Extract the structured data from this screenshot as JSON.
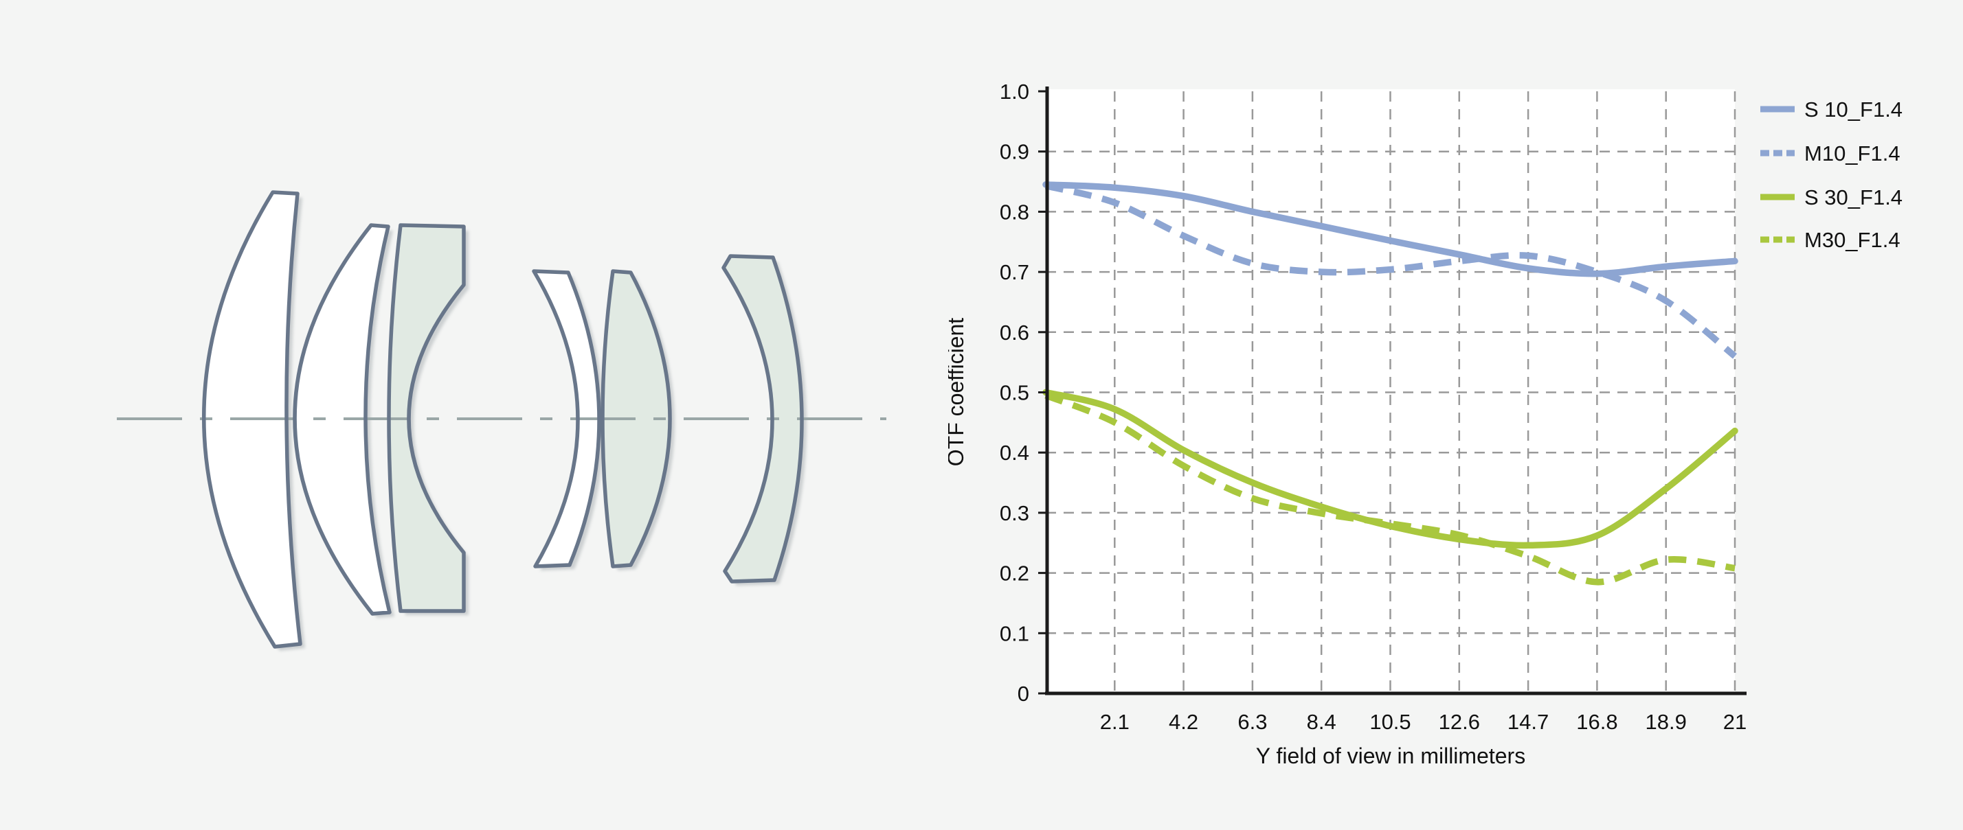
{
  "figure": {
    "description": "Lens cross-section diagram with OTF/MTF performance chart"
  },
  "lens_diagram": {
    "optical_axis": "horizontal dash-dot optical axis",
    "elements": [
      {
        "name": "element-1",
        "shape": "large meniscus, convex left",
        "tinted": false
      },
      {
        "name": "element-2",
        "shape": "meniscus, convex left",
        "tinted": false
      },
      {
        "name": "element-3",
        "shape": "block with deep concave right surface",
        "tinted": true
      },
      {
        "name": "element-4",
        "shape": "small meniscus, convex right",
        "tinted": false
      },
      {
        "name": "element-5",
        "shape": "biconvex lens",
        "tinted": true
      },
      {
        "name": "element-6",
        "shape": "meniscus, convex right",
        "tinted": true
      }
    ]
  },
  "chart_data": {
    "type": "line",
    "title": "",
    "xlabel": "Y field of view in millimeters",
    "ylabel": "OTF coefficient",
    "xlim": [
      0,
      21
    ],
    "ylim": [
      0,
      1
    ],
    "grid": "dashed",
    "legend_position": "right",
    "x": [
      0,
      2.1,
      4.2,
      6.3,
      8.4,
      10.5,
      12.6,
      14.7,
      16.8,
      18.9,
      21
    ],
    "xticks": [
      2.1,
      4.2,
      6.3,
      8.4,
      10.5,
      12.6,
      14.7,
      16.8,
      18.9,
      21
    ],
    "xtick_labels": [
      "2.1",
      "4.2",
      "6.3",
      "8.4",
      "10.5",
      "12.6",
      "14.7",
      "16.8",
      "18.9",
      "21"
    ],
    "yticks": [
      0,
      0.1,
      0.2,
      0.3,
      0.4,
      0.5,
      0.6,
      0.7,
      0.8,
      0.9,
      1.0
    ],
    "ytick_labels": [
      "0",
      "0.1",
      "0.2",
      "0.3",
      "0.4",
      "0.5",
      "0.6",
      "0.7",
      "0.8",
      "0.9",
      "1.0"
    ],
    "series": [
      {
        "name": "S 10_F1.4",
        "color": "#8da5d2",
        "dash": false,
        "values": [
          0.845,
          0.84,
          0.826,
          0.8,
          0.776,
          0.752,
          0.729,
          0.706,
          0.697,
          0.709,
          0.718
        ]
      },
      {
        "name": "M10_F1.4",
        "color": "#8da5d2",
        "dash": true,
        "values": [
          0.843,
          0.815,
          0.76,
          0.714,
          0.7,
          0.704,
          0.718,
          0.727,
          0.7,
          0.652,
          0.56
        ]
      },
      {
        "name": "S 30_F1.4",
        "color": "#a9c73e",
        "dash": false,
        "values": [
          0.5,
          0.472,
          0.404,
          0.35,
          0.31,
          0.278,
          0.256,
          0.246,
          0.262,
          0.34,
          0.436
        ]
      },
      {
        "name": "M30_F1.4",
        "color": "#a9c73e",
        "dash": true,
        "values": [
          0.495,
          0.45,
          0.378,
          0.324,
          0.299,
          0.282,
          0.263,
          0.228,
          0.185,
          0.222,
          0.208
        ]
      }
    ]
  },
  "colors": {
    "page_bg": "#f4f5f4",
    "plot_bg": "#ffffff",
    "grid": "#999999",
    "spine": "#1a1a1a",
    "text": "#111111",
    "blue": "#8da5d2",
    "green": "#a9c73e",
    "lens_outline": "#68768a",
    "lens_tint": "#e1eae3",
    "lens_white": "#ffffff",
    "optical_axis_line": "#9aa7a7"
  }
}
